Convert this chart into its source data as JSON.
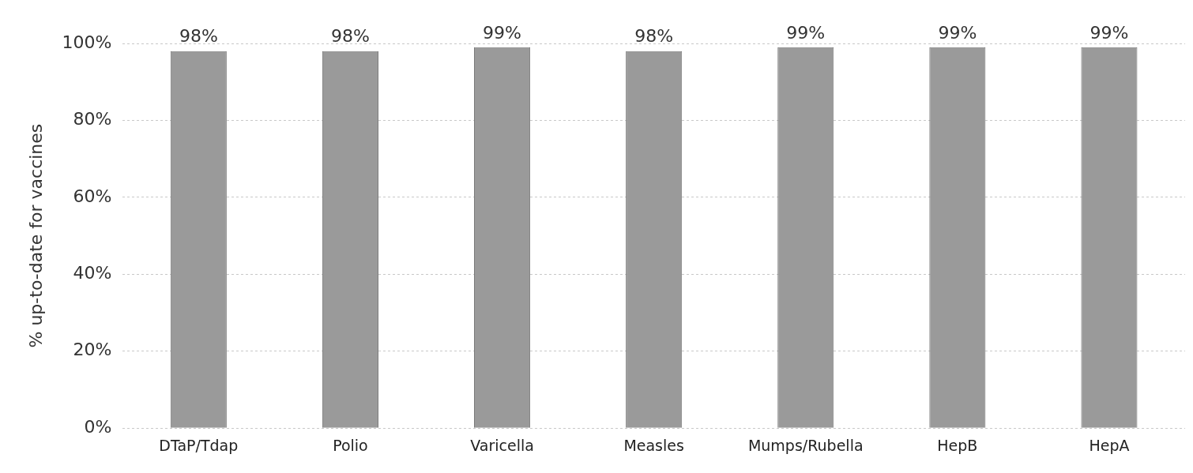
{
  "chart_data": {
    "type": "bar",
    "ylabel": "% up-to-date for vaccines",
    "categories": [
      "DTaP/Tdap",
      "Polio",
      "Varicella",
      "Measles",
      "Mumps/Rubella",
      "HepB",
      "HepA"
    ],
    "values": [
      98,
      98,
      99,
      98,
      99,
      99,
      99
    ],
    "value_labels": [
      "98%",
      "98%",
      "99%",
      "98%",
      "99%",
      "99%",
      "99%"
    ],
    "color": "#9a9a9a",
    "ylim": [
      0,
      100
    ],
    "yticks": [
      {
        "value": 0,
        "label": "0%"
      },
      {
        "value": 20,
        "label": "20%"
      },
      {
        "value": 40,
        "label": "40%"
      },
      {
        "value": 60,
        "label": "60%"
      },
      {
        "value": 80,
        "label": "80%"
      },
      {
        "value": 100,
        "label": "100%"
      }
    ],
    "grid": "y",
    "legend": false
  }
}
